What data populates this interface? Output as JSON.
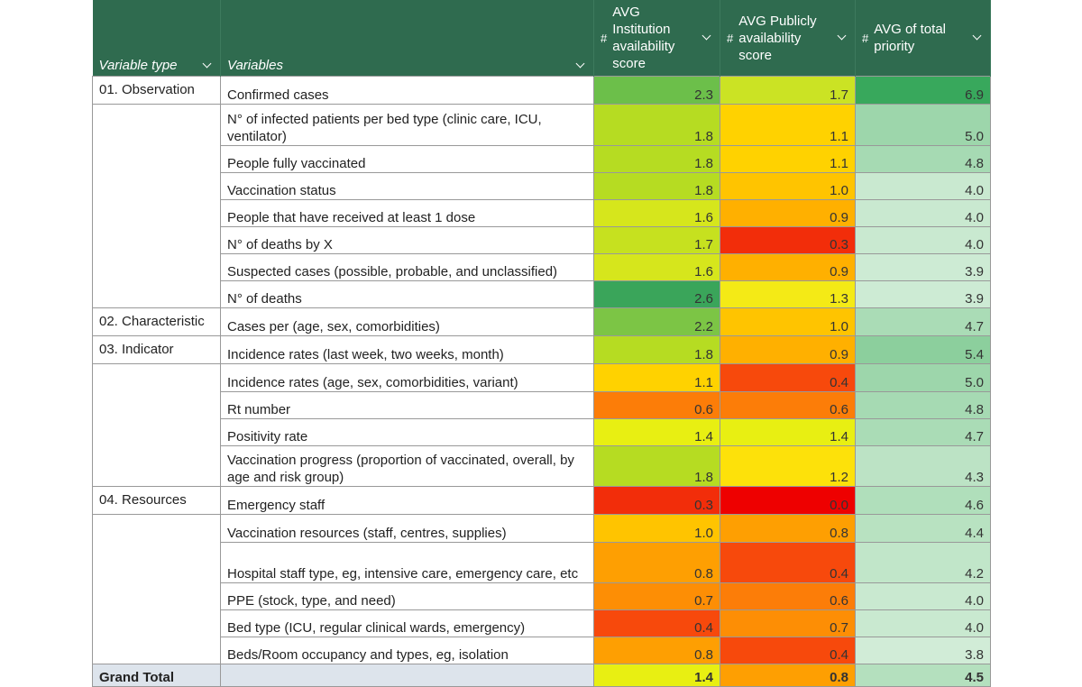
{
  "headers": {
    "variable_type": "Variable type",
    "variables": "Variables",
    "inst_hash": "#",
    "institution": "AVG Institution availability score",
    "pub_hash": "#",
    "publicly": "AVG Publicly availability score",
    "total_hash": "#",
    "total": "AVG of total priority"
  },
  "colors": {
    "header_bg": "#2f6b4f",
    "total_row_bg": "#dde4ec"
  },
  "rows": [
    {
      "type": "01. Observation",
      "variable": "Confirmed cases",
      "inst": "2.3",
      "pub": "1.7",
      "total": "6.9",
      "inst_color": "#6cbf4a",
      "pub_color": "#cbe324",
      "total_color": "#38a85c",
      "h": "r1"
    },
    {
      "type": "",
      "variable": "N° of infected patients per bed type (clinic care, ICU, ventilator)",
      "inst": "1.8",
      "pub": "1.1",
      "total": "5.0",
      "inst_color": "#b6dc22",
      "pub_color": "#ffd200",
      "total_color": "#9dd6ab",
      "h": "r2"
    },
    {
      "type": "",
      "variable": "People fully vaccinated",
      "inst": "1.8",
      "pub": "1.1",
      "total": "4.8",
      "inst_color": "#b6dc22",
      "pub_color": "#ffd200",
      "total_color": "#a6dab3",
      "h": "r1"
    },
    {
      "type": "",
      "variable": "Vaccination status",
      "inst": "1.8",
      "pub": "1.0",
      "total": "4.0",
      "inst_color": "#b6dc22",
      "pub_color": "#ffc400",
      "total_color": "#c9e9d0",
      "h": "r1"
    },
    {
      "type": "",
      "variable": "People that have received at least 1 dose",
      "inst": "1.6",
      "pub": "0.9",
      "total": "4.0",
      "inst_color": "#d6e61c",
      "pub_color": "#ffb000",
      "total_color": "#c9e9d0",
      "h": "r1"
    },
    {
      "type": "",
      "variable": "N° of deaths by X",
      "inst": "1.7",
      "pub": "0.3",
      "total": "4.0",
      "inst_color": "#c6e11f",
      "pub_color": "#f22d0a",
      "total_color": "#c9e9d0",
      "h": "r1"
    },
    {
      "type": "",
      "variable": "Suspected cases (possible, probable, and unclassified)",
      "inst": "1.6",
      "pub": "0.9",
      "total": "3.9",
      "inst_color": "#d6e61c",
      "pub_color": "#ffb000",
      "total_color": "#cdebd4",
      "h": "r1"
    },
    {
      "type": "",
      "variable": "N° of deaths",
      "inst": "2.6",
      "pub": "1.3",
      "total": "3.9",
      "inst_color": "#3aa55a",
      "pub_color": "#f4ea16",
      "total_color": "#cdebd4",
      "h": "r1"
    },
    {
      "type": "02. Characteristic",
      "variable": "Cases per (age, sex, comorbidities)",
      "inst": "2.2",
      "pub": "1.0",
      "total": "4.7",
      "inst_color": "#7cc545",
      "pub_color": "#ffc400",
      "total_color": "#aadcb6",
      "h": "r1"
    },
    {
      "type": "03. Indicator",
      "variable": "Incidence rates (last week, two weeks, month)",
      "inst": "1.8",
      "pub": "0.9",
      "total": "5.4",
      "inst_color": "#b6dc22",
      "pub_color": "#ffb000",
      "total_color": "#8ccf9d",
      "h": "r1"
    },
    {
      "type": "",
      "variable": "Incidence rates (age, sex, comorbidities, variant)",
      "inst": "1.1",
      "pub": "0.4",
      "total": "5.0",
      "inst_color": "#ffd200",
      "pub_color": "#f7490c",
      "total_color": "#9dd6ab",
      "h": "r1"
    },
    {
      "type": "",
      "variable": "Rt number",
      "inst": "0.6",
      "pub": "0.6",
      "total": "4.8",
      "inst_color": "#fc7d08",
      "pub_color": "#fc7d08",
      "total_color": "#a6dab3",
      "h": "r1"
    },
    {
      "type": "",
      "variable": "Positivity rate",
      "inst": "1.4",
      "pub": "1.4",
      "total": "4.7",
      "inst_color": "#e8ef12",
      "pub_color": "#e8ef12",
      "total_color": "#aadcb6",
      "h": "r1"
    },
    {
      "type": "",
      "variable": "Vaccination progress (proportion of vaccinated, overall, by age and risk group)",
      "inst": "1.8",
      "pub": "1.2",
      "total": "4.3",
      "inst_color": "#b6dc22",
      "pub_color": "#fde10a",
      "total_color": "#bce3c5",
      "h": "r2"
    },
    {
      "type": "04. Resources",
      "variable": "Emergency staff",
      "inst": "0.3",
      "pub": "0.0",
      "total": "4.6",
      "inst_color": "#f22d0a",
      "pub_color": "#ee0000",
      "total_color": "#b0dfbb",
      "h": "r1"
    },
    {
      "type": "",
      "variable": "Vaccination resources (staff, centres, supplies)",
      "inst": "1.0",
      "pub": "0.8",
      "total": "4.4",
      "inst_color": "#ffc400",
      "pub_color": "#fe9f02",
      "total_color": "#b8e2c1",
      "h": "r1"
    },
    {
      "type": "",
      "variable": "Hospital staff type, eg, intensive care, emergency care, etc",
      "inst": "0.8",
      "pub": "0.4",
      "total": "4.2",
      "inst_color": "#fe9f02",
      "pub_color": "#f7490c",
      "total_color": "#c1e6c9",
      "h": "r2"
    },
    {
      "type": "",
      "variable": "PPE (stock, type, and need)",
      "inst": "0.7",
      "pub": "0.6",
      "total": "4.0",
      "inst_color": "#fd8e05",
      "pub_color": "#fc7d08",
      "total_color": "#c9e9d0",
      "h": "r1"
    },
    {
      "type": "",
      "variable": "Bed type (ICU, regular clinical wards, emergency)",
      "inst": "0.4",
      "pub": "0.7",
      "total": "4.0",
      "inst_color": "#f7490c",
      "pub_color": "#fd8e05",
      "total_color": "#c9e9d0",
      "h": "r1"
    },
    {
      "type": "",
      "variable": "Beds/Room occupancy and types, eg, isolation",
      "inst": "0.8",
      "pub": "0.4",
      "total": "3.8",
      "inst_color": "#fe9f02",
      "pub_color": "#f7490c",
      "total_color": "#d1ecd7",
      "h": "r1"
    }
  ],
  "grand_total": {
    "label": "Grand Total",
    "inst": "1.4",
    "pub": "0.8",
    "total": "4.5",
    "inst_color": "#e8ef12",
    "pub_color": "#fe9f02",
    "total_color": "#b4e0be"
  }
}
